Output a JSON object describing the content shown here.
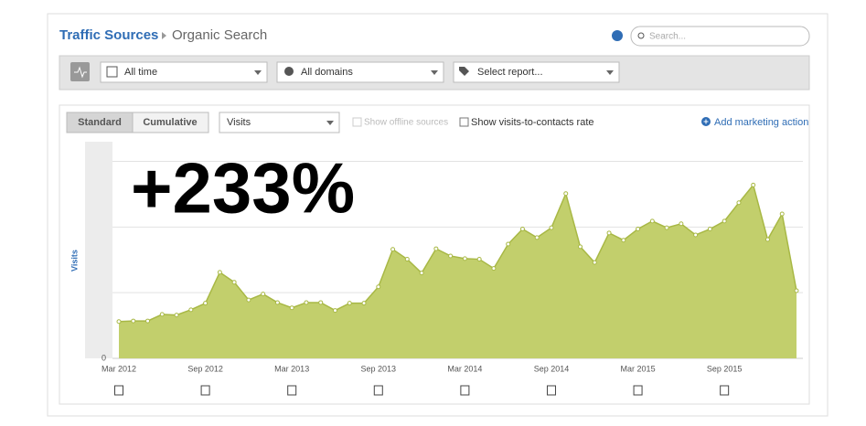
{
  "header": {
    "title": "Traffic Sources",
    "subtitle": "Organic Search",
    "search_placeholder": "Search..."
  },
  "toolbar": {
    "date_range": "All time",
    "domains": "All domains",
    "report": "Select report..."
  },
  "chart_controls": {
    "tabs": [
      "Standard",
      "Cumulative"
    ],
    "metric": "Visits",
    "options": [
      "Show offline sources",
      "Show visits-to-contacts rate"
    ],
    "action": "Add marketing action"
  },
  "chart_data": {
    "type": "area",
    "annotation": "+233%",
    "y_label": "Visits",
    "categories": [
      "Mar 2012",
      null,
      null,
      null,
      null,
      null,
      "Sep 2012",
      null,
      null,
      null,
      null,
      null,
      "Mar 2013",
      null,
      null,
      null,
      null,
      null,
      "Sep 2013",
      null,
      null,
      null,
      null,
      null,
      "Mar 2014",
      null,
      null,
      null,
      null,
      null,
      "Sep 2014",
      null,
      null,
      null,
      null,
      null,
      "Mar 2015",
      null,
      null,
      null,
      null,
      null,
      "Sep 2015",
      null,
      null,
      null,
      null,
      null
    ],
    "values": [
      0.56,
      0.57,
      0.57,
      0.67,
      0.66,
      0.74,
      0.84,
      1.31,
      1.16,
      0.89,
      0.98,
      0.85,
      0.77,
      0.85,
      0.85,
      0.73,
      0.84,
      0.84,
      1.09,
      1.66,
      1.51,
      1.3,
      1.67,
      1.56,
      1.52,
      1.51,
      1.37,
      1.74,
      1.97,
      1.84,
      1.99,
      2.51,
      1.7,
      1.46,
      1.91,
      1.8,
      1.97,
      2.09,
      1.99,
      2.05,
      1.88,
      1.97,
      2.09,
      2.37,
      2.64,
      1.81,
      2.2,
      1.03
    ],
    "color": "#c2cf6c",
    "line_color": "#a8b845",
    "ylim": [
      0,
      3.3
    ],
    "yticks": [
      0
    ],
    "ygrid": [
      1,
      2,
      3
    ],
    "grid": true
  }
}
